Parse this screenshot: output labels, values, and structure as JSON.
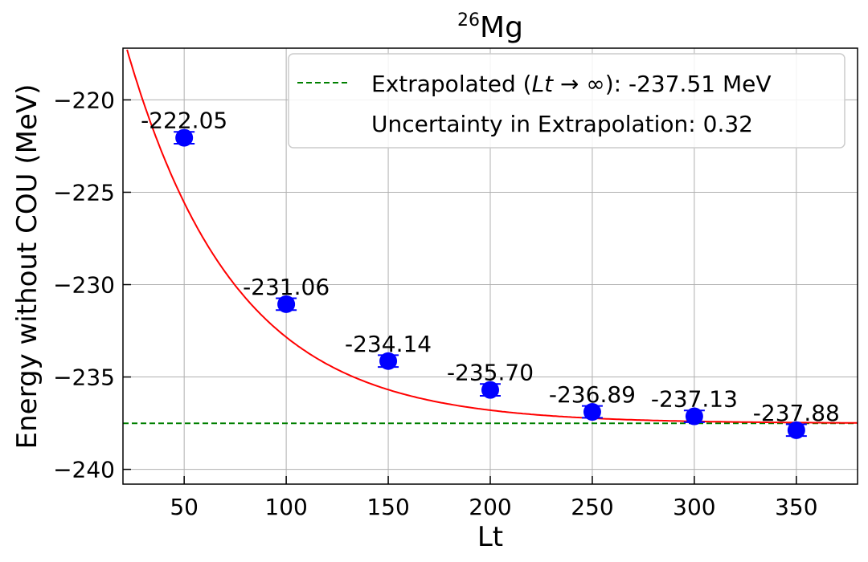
{
  "chart_data": {
    "type": "scatter",
    "title": {
      "sup": "26",
      "main": "Mg"
    },
    "xlabel": "Lt",
    "ylabel": "Energy without COU (MeV)",
    "xlim": [
      20,
      380
    ],
    "ylim": [
      -240.8,
      -217.2
    ],
    "xticks": [
      50,
      100,
      150,
      200,
      250,
      300,
      350
    ],
    "yticks": [
      -220,
      -225,
      -230,
      -235,
      -240
    ],
    "grid": true,
    "legend_position": "top-right",
    "points": {
      "x": [
        50,
        100,
        150,
        200,
        250,
        300,
        350
      ],
      "y": [
        -222.05,
        -231.06,
        -234.14,
        -235.7,
        -236.89,
        -237.13,
        -237.88
      ],
      "labels": [
        "-222.05",
        "-231.06",
        "-234.14",
        "-235.70",
        "-236.89",
        "-237.13",
        "-237.88"
      ],
      "error": [
        0.32,
        0.32,
        0.32,
        0.32,
        0.32,
        0.32,
        0.32
      ],
      "color": "#0000ff"
    },
    "fit": {
      "type": "exponential",
      "asymptote": -237.51,
      "amplitude": 30.59,
      "rate": 0.0188,
      "color": "#ff0000"
    },
    "extrapolation_line": {
      "y": -237.51,
      "color": "#008000"
    },
    "legend": {
      "entry1_prefix": "Extrapolated (",
      "entry1_math": "Lt → ∞",
      "entry1_suffix": "): -237.51 MeV",
      "entry2": "Uncertainty in Extrapolation: 0.32"
    }
  }
}
